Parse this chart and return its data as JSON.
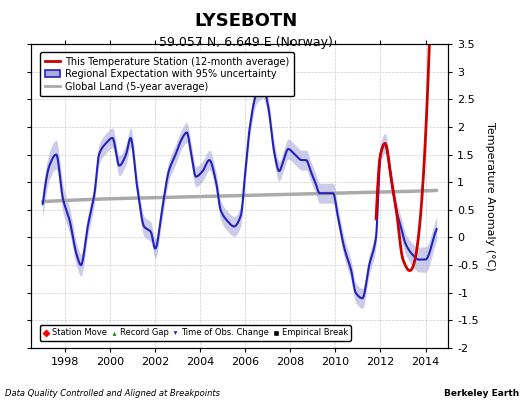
{
  "title": "LYSEBOTN",
  "subtitle": "59.057 N, 6.649 E (Norway)",
  "ylabel": "Temperature Anomaly (°C)",
  "footer_left": "Data Quality Controlled and Aligned at Breakpoints",
  "footer_right": "Berkeley Earth",
  "xlim": [
    1996.5,
    2015.0
  ],
  "ylim": [
    -2.0,
    3.5
  ],
  "yticks": [
    -2,
    -1.5,
    -1,
    -0.5,
    0,
    0.5,
    1,
    1.5,
    2,
    2.5,
    3,
    3.5
  ],
  "xticks": [
    1998,
    2000,
    2002,
    2004,
    2006,
    2008,
    2010,
    2012,
    2014
  ],
  "regional_color": "#2222bb",
  "regional_fill_color": "#aaaadd",
  "station_color": "#cc0000",
  "global_color": "#aaaaaa",
  "global_lw": 2.5,
  "regional_lw": 1.5,
  "station_lw": 2.0,
  "background_color": "#ffffff",
  "grid_color": "#cccccc",
  "title_fontsize": 13,
  "subtitle_fontsize": 9,
  "tick_fontsize": 8,
  "label_fontsize": 8,
  "regional_knots_x": [
    1997.0,
    1997.3,
    1997.6,
    1997.9,
    1998.2,
    1998.5,
    1998.7,
    1999.0,
    1999.3,
    1999.5,
    1999.8,
    2000.1,
    2000.4,
    2000.7,
    2000.9,
    2001.2,
    2001.5,
    2001.8,
    2002.0,
    2002.3,
    2002.6,
    2002.9,
    2003.2,
    2003.4,
    2003.6,
    2003.8,
    2004.1,
    2004.4,
    2004.7,
    2004.9,
    2005.2,
    2005.5,
    2005.8,
    2006.0,
    2006.2,
    2006.5,
    2006.8,
    2007.0,
    2007.3,
    2007.5,
    2007.7,
    2007.9,
    2008.2,
    2008.5,
    2008.7,
    2008.9,
    2009.1,
    2009.3,
    2009.6,
    2009.9,
    2010.1,
    2010.4,
    2010.7,
    2010.9,
    2011.2,
    2011.5,
    2011.8,
    2012.0,
    2012.2,
    2012.5,
    2012.7,
    2012.9,
    2013.1,
    2013.4,
    2013.7,
    2014.0,
    2014.3
  ],
  "regional_knots_y": [
    0.6,
    1.3,
    1.5,
    0.7,
    0.3,
    -0.3,
    -0.5,
    0.2,
    0.8,
    1.5,
    1.7,
    1.8,
    1.3,
    1.5,
    1.8,
    0.9,
    0.2,
    0.1,
    -0.2,
    0.5,
    1.2,
    1.5,
    1.8,
    1.9,
    1.5,
    1.1,
    1.2,
    1.4,
    1.0,
    0.5,
    0.3,
    0.2,
    0.4,
    1.2,
    2.0,
    2.6,
    2.7,
    2.4,
    1.5,
    1.2,
    1.4,
    1.6,
    1.5,
    1.4,
    1.4,
    1.2,
    1.0,
    0.8,
    0.8,
    0.8,
    0.4,
    -0.2,
    -0.6,
    -1.0,
    -1.1,
    -0.5,
    0.0,
    1.5,
    1.7,
    1.0,
    0.5,
    0.2,
    -0.1,
    -0.3,
    -0.4,
    -0.4,
    -0.1
  ],
  "global_knots_x": [
    1997.0,
    2000.0,
    2003.0,
    2006.0,
    2009.0,
    2012.0,
    2014.5
  ],
  "global_knots_y": [
    0.65,
    0.7,
    0.73,
    0.76,
    0.79,
    0.82,
    0.85
  ],
  "station_start": 2011.8,
  "station_knots_x": [
    2011.8,
    2012.0,
    2012.2,
    2012.5,
    2012.7,
    2013.0,
    2013.3
  ],
  "station_knots_y": [
    0.3,
    1.5,
    1.7,
    1.0,
    0.5,
    -0.4,
    -0.6
  ]
}
